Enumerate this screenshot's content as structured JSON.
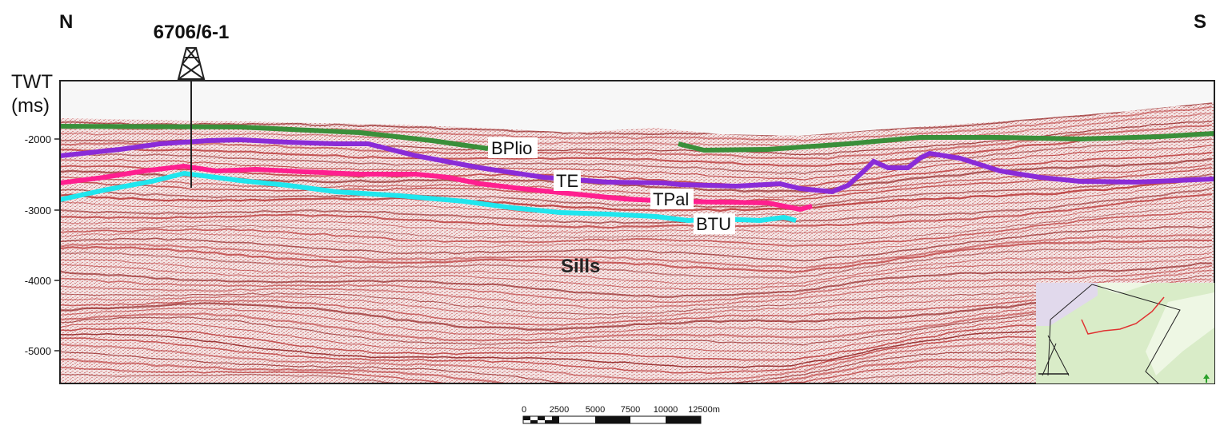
{
  "compass": {
    "north": "N",
    "south": "S"
  },
  "well": {
    "name": "6706/6-1"
  },
  "axis": {
    "title_line1": "TWT",
    "title_line2": "(ms)",
    "ticks": [
      "-2000",
      "-3000",
      "-4000",
      "-5000"
    ]
  },
  "horizons": {
    "bplio": {
      "label": "BPlio",
      "color": "#3a8f3a"
    },
    "te": {
      "label": "TE",
      "color": "#8a2bd8"
    },
    "tpal": {
      "label": "TPal",
      "color": "#ff1f8f"
    },
    "btu": {
      "label": "BTU",
      "color": "#1fe6ee"
    }
  },
  "feature_label": "Sills",
  "scalebar": {
    "labels": [
      "0",
      "2500",
      "5000",
      "7500",
      "10000",
      "12500m"
    ]
  },
  "colors": {
    "seismic_bg": "#f4dede",
    "reflector_dark": "#8c1414",
    "reflector_mid": "#b83232",
    "water": "#f7f7f7",
    "inset_bg": "#d9ecc8",
    "inset_light": "#eef7e4",
    "inset_purple": "#e1d9ec",
    "inset_line": "#e03030"
  }
}
